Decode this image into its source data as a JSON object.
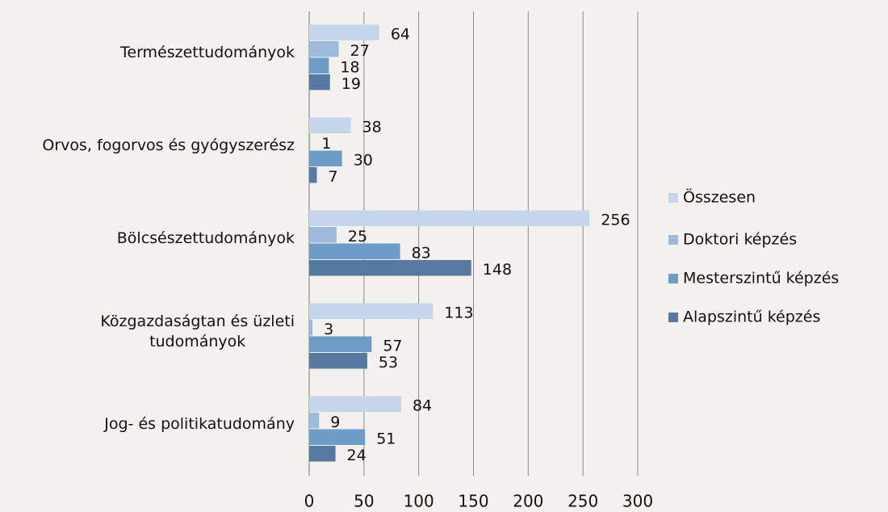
{
  "chart_data": {
    "type": "hbar",
    "categories": [
      "Természettudományok",
      "Orvos, fogorvos és gyógyszerész",
      "Bölcsészettudományok",
      "Közgazdaságtan és üzleti\ntudományok",
      "Jog- és politikatudomány"
    ],
    "series": [
      {
        "name": "Összesen",
        "color": "#c5d6ea",
        "values": [
          64,
          38,
          256,
          113,
          84
        ]
      },
      {
        "name": "Doktori képzés",
        "color": "#9dbcdb",
        "values": [
          27,
          1,
          25,
          3,
          9
        ]
      },
      {
        "name": "Mesterszintű képzés",
        "color": "#6e9cc8",
        "values": [
          18,
          30,
          83,
          57,
          51
        ]
      },
      {
        "name": "Alapszintű képzés",
        "color": "#55799f",
        "values": [
          19,
          7,
          148,
          53,
          24
        ]
      }
    ],
    "xlim": [
      0,
      300
    ],
    "xticks": [
      0,
      50,
      100,
      150,
      200,
      250,
      300
    ],
    "grid": true,
    "legend": "right"
  }
}
